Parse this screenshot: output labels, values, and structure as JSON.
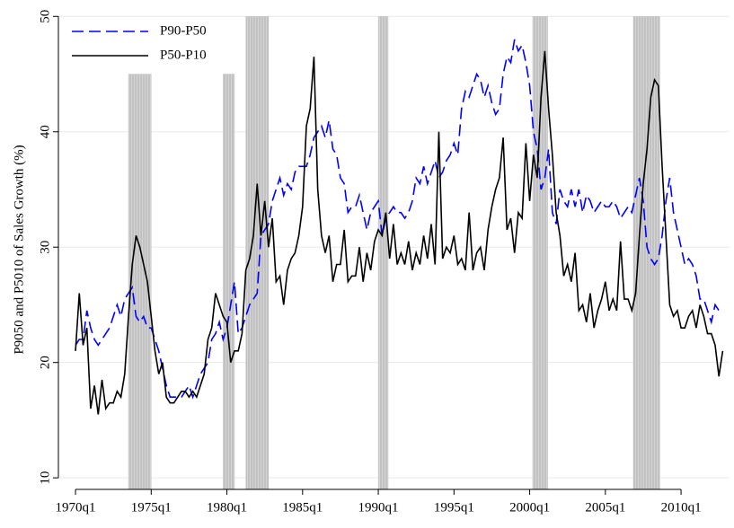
{
  "chart_data": {
    "type": "line",
    "y_label": "P9050 and P5010 of Sales Growth (%)",
    "x": [
      1970,
      1970.25,
      1970.5,
      1970.75,
      1971,
      1971.25,
      1971.5,
      1971.75,
      1972,
      1972.25,
      1972.5,
      1972.75,
      1973,
      1973.25,
      1973.5,
      1973.75,
      1974,
      1974.25,
      1974.5,
      1974.75,
      1975,
      1975.25,
      1975.5,
      1975.75,
      1976,
      1976.25,
      1976.5,
      1976.75,
      1977,
      1977.25,
      1977.5,
      1977.75,
      1978,
      1978.25,
      1978.5,
      1978.75,
      1979,
      1979.25,
      1979.5,
      1979.75,
      1980,
      1980.25,
      1980.5,
      1980.75,
      1981,
      1981.25,
      1981.5,
      1981.75,
      1982,
      1982.25,
      1982.5,
      1982.75,
      1983,
      1983.25,
      1983.5,
      1983.75,
      1984,
      1984.25,
      1984.5,
      1984.75,
      1985,
      1985.25,
      1985.5,
      1985.75,
      1986,
      1986.25,
      1986.5,
      1986.75,
      1987,
      1987.25,
      1987.5,
      1987.75,
      1988,
      1988.25,
      1988.5,
      1988.75,
      1989,
      1989.25,
      1989.5,
      1989.75,
      1990,
      1990.25,
      1990.5,
      1990.75,
      1991,
      1991.25,
      1991.5,
      1991.75,
      1992,
      1992.25,
      1992.5,
      1992.75,
      1993,
      1993.25,
      1993.5,
      1993.75,
      1994,
      1994.25,
      1994.5,
      1994.75,
      1995,
      1995.25,
      1995.5,
      1995.75,
      1996,
      1996.25,
      1996.5,
      1996.75,
      1997,
      1997.25,
      1997.5,
      1997.75,
      1998,
      1998.25,
      1998.5,
      1998.75,
      1999,
      1999.25,
      1999.5,
      1999.75,
      2000,
      2000.25,
      2000.5,
      2000.75,
      2001,
      2001.25,
      2001.5,
      2001.75,
      2002,
      2002.25,
      2002.5,
      2002.75,
      2003,
      2003.25,
      2003.5,
      2003.75,
      2004,
      2004.25,
      2004.5,
      2004.75,
      2005,
      2005.25,
      2005.5,
      2005.75,
      2006,
      2006.25,
      2006.5,
      2006.75,
      2007,
      2007.25,
      2007.5,
      2007.75,
      2008,
      2008.25,
      2008.5,
      2008.75,
      2009,
      2009.25,
      2009.5,
      2009.75,
      2010,
      2010.25,
      2010.5,
      2010.75,
      2011,
      2011.25,
      2011.5,
      2011.75,
      2012,
      2012.25,
      2012.5,
      2012.75
    ],
    "series": [
      {
        "name": "P90-P50",
        "color": "#0000ff",
        "dashed": true,
        "values": [
          21.5,
          22,
          22,
          24.5,
          23,
          22,
          21.5,
          22,
          22.5,
          23,
          24,
          25,
          24,
          25.5,
          26,
          26.5,
          24,
          23.5,
          24,
          23,
          23,
          22,
          21,
          19.5,
          18,
          17,
          17,
          17,
          17,
          17.5,
          18,
          17,
          18,
          19,
          19.5,
          20,
          22,
          22.5,
          23.5,
          22,
          23,
          25,
          27,
          22.5,
          23,
          24,
          25,
          25.5,
          26,
          31,
          31.5,
          32,
          34,
          35,
          36,
          34.5,
          35.5,
          35,
          36.5,
          37,
          37,
          37,
          38,
          39.5,
          40,
          40.5,
          39.5,
          41,
          38.5,
          38,
          36,
          35.5,
          33,
          33.5,
          33.5,
          34.5,
          33,
          31.5,
          33,
          33.5,
          34,
          31,
          32.5,
          33,
          33.5,
          33,
          33,
          32.5,
          33,
          34,
          36,
          35.5,
          37,
          35.5,
          36.5,
          37.5,
          36,
          36.5,
          37.5,
          38,
          39,
          38,
          42,
          43.5,
          43,
          44,
          45,
          44.5,
          43,
          44,
          42.5,
          41.5,
          42,
          45,
          46.5,
          46,
          48,
          47,
          47.5,
          46,
          44,
          40,
          38.5,
          35,
          36,
          38.5,
          33,
          32,
          35,
          34,
          33.5,
          35,
          33.5,
          35,
          33,
          34.5,
          34,
          33,
          33.5,
          34,
          33.5,
          33.5,
          34,
          33.5,
          32.5,
          33,
          33.5,
          33,
          34.5,
          36,
          34,
          30,
          29,
          28.5,
          29,
          31,
          34,
          36,
          33,
          31.5,
          30,
          28.5,
          29,
          28.5,
          27.5,
          25.5,
          25.5,
          24.5,
          23.5,
          25,
          24.5,
          24.7
        ]
      },
      {
        "name": "P50-P10",
        "color": "#000000",
        "dashed": false,
        "values": [
          21,
          26,
          21.5,
          23,
          16,
          18,
          15.5,
          18.5,
          16,
          16.5,
          16.5,
          17.5,
          17,
          19,
          24,
          28.5,
          31,
          30,
          28.5,
          27,
          24,
          21,
          19,
          20,
          17,
          16.5,
          16.5,
          17,
          17.5,
          17.5,
          17,
          17.5,
          17,
          18,
          19,
          22,
          23,
          26,
          25,
          24,
          23.5,
          20,
          21,
          21,
          22.5,
          28,
          29,
          31,
          35.5,
          31,
          34,
          30,
          32.5,
          27,
          27.5,
          25,
          28,
          29,
          29.5,
          31,
          33.5,
          40.5,
          42,
          46.5,
          35,
          31,
          29.5,
          31,
          27,
          28.5,
          28.5,
          31.5,
          27,
          27.5,
          27.5,
          30,
          27,
          29.5,
          28,
          30.5,
          31.5,
          31,
          33,
          29,
          32,
          28.5,
          29.5,
          28.5,
          30.5,
          28,
          29.5,
          28.5,
          31,
          29,
          32,
          28.5,
          40,
          29,
          30,
          29.5,
          31,
          28.5,
          29,
          28,
          33,
          28,
          29.5,
          30,
          28,
          31.5,
          33.5,
          35,
          36,
          39.5,
          31.5,
          32.5,
          29.5,
          33,
          32.5,
          39,
          34,
          38,
          36,
          43,
          47,
          42,
          38,
          33,
          31,
          27.5,
          28.5,
          27,
          29.5,
          24.5,
          25,
          23.5,
          26,
          23,
          24.5,
          25.5,
          27,
          24.5,
          25.5,
          24.5,
          30.5,
          25.5,
          25.5,
          24.5,
          26,
          31,
          35.5,
          38.5,
          43,
          44.5,
          44,
          37,
          31,
          25,
          24,
          24.5,
          23,
          23,
          24,
          24.5,
          23,
          25,
          24,
          22.5,
          22.5,
          21.5,
          18.8,
          21
        ]
      }
    ],
    "bands": [
      {
        "start": 1973.5,
        "end": 1975,
        "top": 45
      },
      {
        "start": 1979.75,
        "end": 1980.5,
        "top": 45
      },
      {
        "start": 1981.25,
        "end": 1982.75,
        "top": 50
      },
      {
        "start": 1990,
        "end": 1990.65,
        "top": 50
      },
      {
        "start": 2000.2,
        "end": 2001.2,
        "top": 50
      },
      {
        "start": 2006.85,
        "end": 2008.6,
        "top": 50
      }
    ],
    "band_color": "#c8c8c8",
    "xlim": [
      1968.87,
      2013.2
    ],
    "ylim": [
      9,
      50.8
    ],
    "xticks": [
      {
        "value": 1970,
        "label": "1970q1"
      },
      {
        "value": 1975,
        "label": "1975q1"
      },
      {
        "value": 1980,
        "label": "1980q1"
      },
      {
        "value": 1985,
        "label": "1985q1"
      },
      {
        "value": 1990,
        "label": "1990q1"
      },
      {
        "value": 1995,
        "label": "1995q1"
      },
      {
        "value": 2000,
        "label": "2000q1"
      },
      {
        "value": 2005,
        "label": "2005q1"
      },
      {
        "value": 2010,
        "label": "2010q1"
      }
    ],
    "yticks": [
      10,
      20,
      30,
      40,
      50
    ],
    "grid": true,
    "legend": "top-left"
  }
}
